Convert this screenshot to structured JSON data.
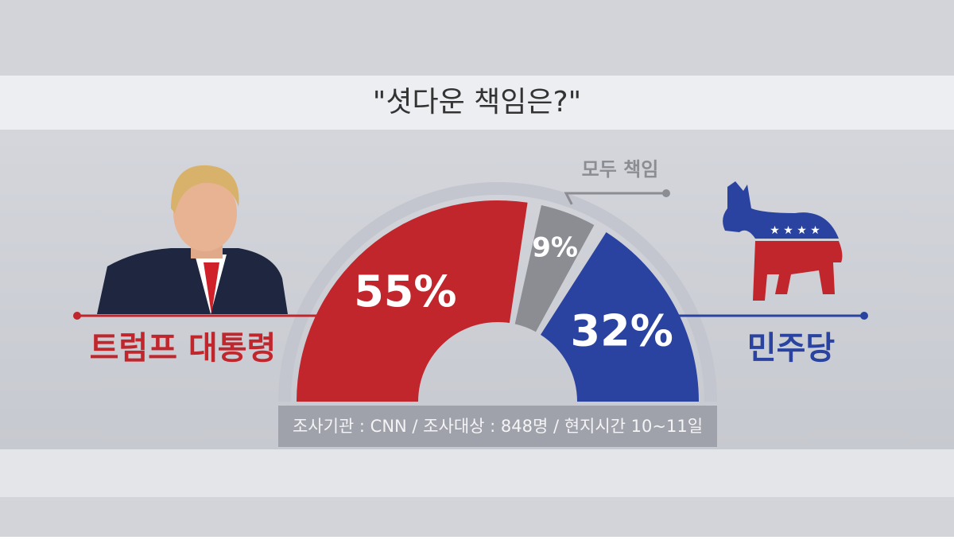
{
  "chart_data": {
    "type": "half-donut",
    "title": "\"셧다운 책임은?\"",
    "categories": [
      "트럼프 대통령",
      "모두 책임",
      "민주당"
    ],
    "values": [
      55,
      9,
      32
    ],
    "value_labels": [
      "55%",
      "9%",
      "32%"
    ],
    "colors": [
      "#c0262c",
      "#8b8d93",
      "#2b43a0"
    ],
    "note": "조사기관 : CNN /  조사대상 : 848명 / 현지시간 10~11일"
  }
}
